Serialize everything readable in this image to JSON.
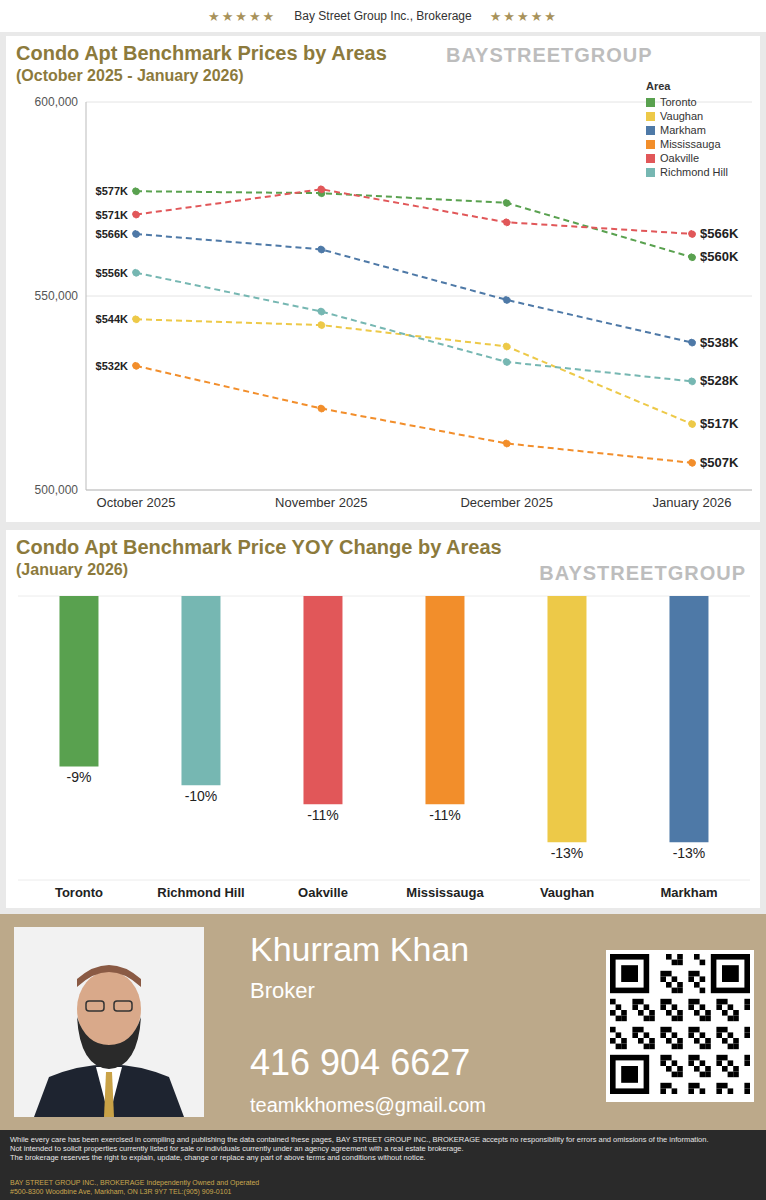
{
  "header": {
    "stars": "★★★★★",
    "title": "Bay Street Group Inc., Brokerage"
  },
  "watermark": "BAYSTREETGROUP",
  "chart_data": [
    {
      "type": "line",
      "title": "Condo Apt Benchmark Prices by Areas",
      "subtitle": "(October 2025 - January 2026)",
      "categories": [
        "October 2025",
        "November 2025",
        "December 2025",
        "January 2026"
      ],
      "series": [
        {
          "name": "Toronto",
          "color": "#59a14f",
          "values": [
            577000,
            576500,
            574000,
            560000
          ],
          "value_labels": [
            "$577K",
            null,
            null,
            "$560K"
          ]
        },
        {
          "name": "Vaughan",
          "color": "#edc948",
          "values": [
            544000,
            542500,
            537000,
            517000
          ],
          "value_labels": [
            "$544K",
            null,
            null,
            "$517K"
          ]
        },
        {
          "name": "Markham",
          "color": "#4e79a7",
          "values": [
            566000,
            562000,
            549000,
            538000
          ],
          "value_labels": [
            "$566K",
            null,
            null,
            "$538K"
          ]
        },
        {
          "name": "Mississauga",
          "color": "#f28e2b",
          "values": [
            532000,
            521000,
            512000,
            507000
          ],
          "value_labels": [
            "$532K",
            null,
            null,
            "$507K"
          ]
        },
        {
          "name": "Oakville",
          "color": "#e15759",
          "values": [
            571000,
            577500,
            569000,
            566000
          ],
          "value_labels": [
            "$571K",
            null,
            null,
            "$566K"
          ]
        },
        {
          "name": "Richmond Hill",
          "color": "#76b7b2",
          "values": [
            556000,
            546000,
            533000,
            528000
          ],
          "value_labels": [
            "$556K",
            null,
            null,
            "$528K"
          ]
        }
      ],
      "ylim": [
        500000,
        600000
      ],
      "yticks": [
        {
          "value": 500000,
          "label": "500,000"
        },
        {
          "value": 550000,
          "label": "550,000"
        },
        {
          "value": 600000,
          "label": "600,000"
        }
      ],
      "grid": true,
      "legend": "upper right",
      "legend_title": "Area",
      "data_labels": true,
      "marker": "circle",
      "line_style": "dashed"
    },
    {
      "type": "bar",
      "title": "Condo Apt Benchmark Price YOY Change by Areas",
      "subtitle": "(January 2026)",
      "categories": [
        "Toronto",
        "Richmond Hill",
        "Oakville",
        "Mississauga",
        "Vaughan",
        "Markham"
      ],
      "values": [
        -9,
        -10,
        -11,
        -11,
        -13,
        -13
      ],
      "value_labels": [
        "-9%",
        "-10%",
        "-11%",
        "-11%",
        "-13%",
        "-13%"
      ],
      "colors": [
        "#59a14f",
        "#76b7b2",
        "#e15759",
        "#f28e2b",
        "#edc948",
        "#4e79a7"
      ],
      "ylim": [
        -15,
        0
      ],
      "yticks": [
        -15,
        -12,
        -9,
        -6,
        -3,
        0
      ],
      "grid": true,
      "data_labels": true,
      "tick_labels": "x"
    }
  ],
  "footer": {
    "name": "Khurram Khan",
    "role": "Broker",
    "phone": "416 904 6627",
    "email": "teamkkhomes@gmail.com",
    "disclaimer": [
      "While every care has been exercised in compiling and publishing the data contained these pages, BAY STREET GROUP INC., BROKERAGE accepts no responsibility for errors and omissions of the information.",
      "Not intended to solicit properties currently listed for sale or individuals currently under an agency agreement with a real estate brokerage.",
      "The brokerage reserves the right to explain, update, change or replace any part of above terms and conditions without notice."
    ],
    "brokerage": [
      "BAY STREET GROUP INC., BROKERAGE Independently Owned and Operated",
      "#500-8300 Woodbine Ave, Markham, ON L3R 9Y7 TEL:(905) 909-0101"
    ]
  }
}
